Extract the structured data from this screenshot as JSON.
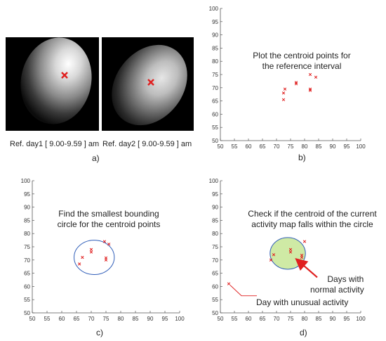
{
  "panel_a": {
    "label": "a)",
    "image1_caption": "Ref. day1 [ 9.00-9.59 ] am",
    "image2_caption": "Ref. day2 [ 9.00-9.59 ] am",
    "marker_color": "#e02020"
  },
  "panel_b": {
    "label": "b)",
    "note_line1": "Plot the centroid points for",
    "note_line2": "the reference interval"
  },
  "panel_c": {
    "label": "c)",
    "note_line1": "Find the smallest bounding",
    "note_line2": "circle for the centroid points"
  },
  "panel_d": {
    "label": "d)",
    "note_line1": "Check if the centroid of the current",
    "note_line2": "activity map falls within the circle",
    "normal_label_line1": "Days with",
    "normal_label_line2": "normal activity",
    "unusual_label": "Day with unusual activity"
  },
  "colors": {
    "point": "#e02020",
    "circle_stroke": "#2f5db8",
    "circle_fill_d": "#cfeaa5",
    "arrow": "#e02020"
  },
  "chart_data": [
    {
      "type": "scatter",
      "panel": "b",
      "xlim": [
        50,
        100
      ],
      "ylim": [
        50,
        100
      ],
      "xticks": [
        50,
        55,
        60,
        65,
        70,
        75,
        80,
        85,
        90,
        95,
        100
      ],
      "yticks": [
        50,
        55,
        60,
        65,
        70,
        75,
        80,
        85,
        90,
        95,
        100
      ],
      "points": [
        [
          72.5,
          65.5
        ],
        [
          72.5,
          68
        ],
        [
          73,
          69.5
        ],
        [
          77,
          71.5
        ],
        [
          77,
          72
        ],
        [
          82,
          69
        ],
        [
          82,
          69.5
        ],
        [
          82,
          75
        ],
        [
          84,
          74
        ]
      ]
    },
    {
      "type": "scatter",
      "panel": "c",
      "xlim": [
        50,
        100
      ],
      "ylim": [
        50,
        100
      ],
      "xticks": [
        50,
        55,
        60,
        65,
        70,
        75,
        80,
        85,
        90,
        95,
        100
      ],
      "yticks": [
        50,
        55,
        60,
        65,
        70,
        75,
        80,
        85,
        90,
        95,
        100
      ],
      "points": [
        [
          66,
          68.5
        ],
        [
          67,
          71
        ],
        [
          70,
          73
        ],
        [
          70,
          74
        ],
        [
          75,
          70
        ],
        [
          75,
          70.8
        ],
        [
          74.5,
          77
        ],
        [
          76,
          76
        ]
      ],
      "circle": {
        "cx": 71,
        "cy": 71,
        "r": 6.5
      }
    },
    {
      "type": "scatter",
      "panel": "d",
      "xlim": [
        50,
        100
      ],
      "ylim": [
        50,
        100
      ],
      "xticks": [
        50,
        55,
        60,
        65,
        70,
        75,
        80,
        85,
        90,
        95,
        100
      ],
      "yticks": [
        50,
        55,
        60,
        65,
        70,
        75,
        80,
        85,
        90,
        95,
        100
      ],
      "points": [
        [
          68,
          70
        ],
        [
          69,
          72
        ],
        [
          75,
          74
        ],
        [
          75,
          73
        ],
        [
          79,
          71
        ],
        [
          79,
          71.8
        ],
        [
          80,
          77
        ]
      ],
      "outlier": [
        53,
        61
      ],
      "circle": {
        "cx": 74,
        "cy": 72.5,
        "r": 6
      }
    }
  ]
}
